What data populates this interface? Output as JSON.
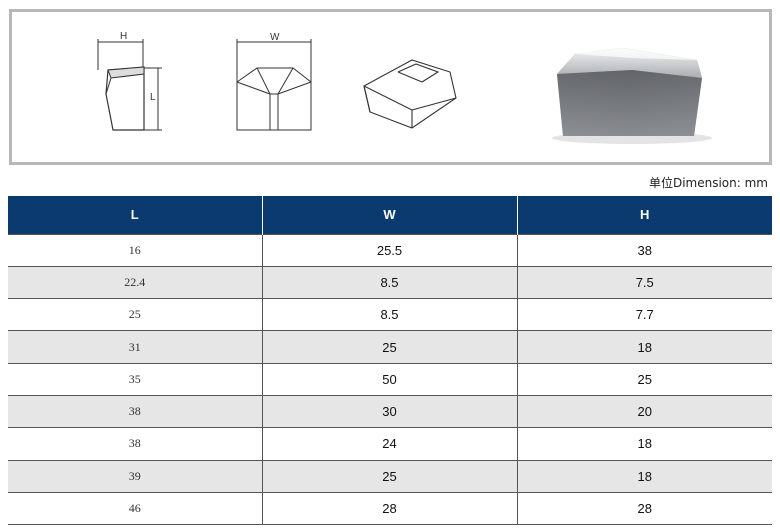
{
  "figures": {
    "side_view_labels": [
      "H",
      "L"
    ],
    "front_view_labels": [
      "W"
    ]
  },
  "unit_note": "单位Dimension: mm",
  "table": {
    "headers": [
      "L",
      "W",
      "H"
    ],
    "rows": [
      [
        "16",
        "25.5",
        "38"
      ],
      [
        "22.4",
        "8.5",
        "7.5"
      ],
      [
        "25",
        "8.5",
        "7.7"
      ],
      [
        "31",
        "25",
        "18"
      ],
      [
        "35",
        "50",
        "25"
      ],
      [
        "38",
        "30",
        "20"
      ],
      [
        "38",
        "24",
        "18"
      ],
      [
        "39",
        "25",
        "18"
      ],
      [
        "46",
        "28",
        "28"
      ]
    ]
  }
}
